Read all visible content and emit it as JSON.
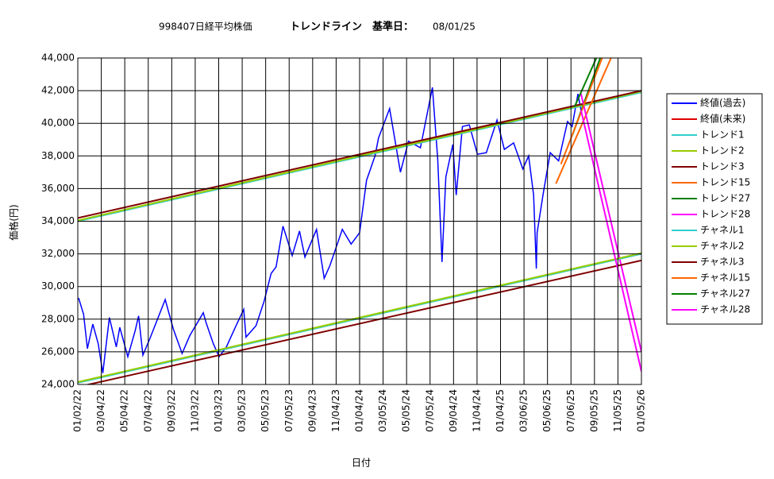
{
  "chart_data": {
    "type": "line",
    "title": [
      "998407日経平均株価",
      "トレンドライン　基準日：",
      "08/01/25"
    ],
    "x_label": "日付",
    "y_label": "価格(円)",
    "xlim": [
      "01/02/22",
      "01/05/26"
    ],
    "xticks": [
      "01/02/22",
      "03/04/22",
      "05/04/22",
      "07/04/22",
      "09/03/22",
      "11/03/22",
      "01/03/23",
      "03/05/23",
      "05/05/23",
      "07/05/23",
      "09/04/23",
      "11/04/23",
      "01/04/24",
      "03/05/24",
      "05/05/24",
      "07/05/24",
      "09/04/24",
      "11/04/24",
      "01/04/25",
      "03/06/25",
      "05/06/25",
      "07/06/25",
      "09/05/25",
      "11/05/25",
      "01/05/26"
    ],
    "ylim": [
      24000,
      44000
    ],
    "yticks": [
      {
        "value": 24000,
        "label": "24,000"
      },
      {
        "value": 26000,
        "label": "26,000"
      },
      {
        "value": 28000,
        "label": "28,000"
      },
      {
        "value": 30000,
        "label": "30,000"
      },
      {
        "value": 32000,
        "label": "32,000"
      },
      {
        "value": 34000,
        "label": "34,000"
      },
      {
        "value": 36000,
        "label": "36,000"
      },
      {
        "value": 38000,
        "label": "38,000"
      },
      {
        "value": 40000,
        "label": "40,000"
      },
      {
        "value": 42000,
        "label": "42,000"
      },
      {
        "value": 44000,
        "label": "44,000"
      }
    ],
    "grid": true,
    "series": [
      {
        "name": "終値(過去)",
        "color": "#0000ff",
        "x": [
          "01/04/22",
          "01/17/22",
          "01/27/22",
          "02/10/22",
          "02/24/22",
          "03/08/22",
          "03/25/22",
          "04/12/22",
          "04/21/22",
          "05/12/22",
          "05/31/22",
          "06/09/22",
          "06/20/22",
          "07/08/22",
          "08/17/22",
          "09/07/22",
          "09/30/22",
          "10/20/22",
          "11/24/22",
          "12/01/22",
          "12/20/22",
          "01/04/23",
          "01/23/23",
          "02/15/23",
          "03/09/23",
          "03/15/23",
          "04/10/23",
          "05/01/23",
          "05/19/23",
          "06/01/23",
          "06/19/23",
          "07/13/23",
          "08/01/23",
          "08/15/23",
          "09/14/23",
          "10/04/23",
          "10/19/23",
          "11/20/23",
          "12/13/23",
          "01/04/24",
          "01/22/24",
          "02/13/24",
          "02/22/24",
          "03/22/24",
          "04/19/24",
          "05/10/24",
          "06/10/24",
          "07/11/24",
          "07/25/24",
          "08/05/24",
          "08/15/24",
          "09/02/24",
          "09/11/24",
          "09/27/24",
          "10/15/24",
          "11/05/24",
          "11/28/24",
          "12/26/24",
          "01/14/25",
          "02/07/25",
          "03/03/25",
          "03/18/25",
          "03/31/25",
          "04/07/25",
          "04/09/25",
          "04/25/25",
          "05/13/25",
          "06/04/25",
          "06/27/25",
          "07/09/25",
          "07/24/25",
          "08/01/25"
        ],
        "values": [
          29300,
          28300,
          26200,
          27700,
          26500,
          24700,
          28100,
          26300,
          27500,
          25700,
          27300,
          28200,
          25800,
          26800,
          29200,
          27400,
          25900,
          27000,
          28400,
          27800,
          26500,
          25700,
          26300,
          27500,
          28600,
          26900,
          27600,
          29100,
          30800,
          31200,
          33700,
          31900,
          33400,
          31800,
          33500,
          30500,
          31300,
          33500,
          32600,
          33300,
          36500,
          38000,
          39100,
          40900,
          37000,
          38900,
          38500,
          42200,
          37800,
          31500,
          36700,
          38700,
          35600,
          39800,
          39900,
          38100,
          38200,
          40200,
          38400,
          38800,
          37200,
          38000,
          35600,
          31100,
          33300,
          35700,
          38200,
          37700,
          40100,
          39800,
          41800,
          40800
        ]
      },
      {
        "name": "終値(未来)",
        "color": "#e00000",
        "x": [],
        "values": []
      },
      {
        "name": "トレンド1",
        "color": "#33cccc",
        "x": [
          "01/02/22",
          "01/05/26"
        ],
        "values": [
          34000,
          41900
        ]
      },
      {
        "name": "トレンド2",
        "color": "#99cc00",
        "x": [
          "01/02/22",
          "01/05/26"
        ],
        "values": [
          34050,
          41950
        ]
      },
      {
        "name": "トレンド3",
        "color": "#800000",
        "x": [
          "01/02/22",
          "01/05/26"
        ],
        "values": [
          34200,
          42000
        ]
      },
      {
        "name": "トレンド15",
        "color": "#ff6600",
        "x": [
          "05/28/25",
          "10/18/25"
        ],
        "values": [
          36300,
          44000
        ]
      },
      {
        "name": "トレンド27",
        "color": "#008000",
        "x": [
          "07/10/25",
          "09/20/25"
        ],
        "values": [
          39300,
          44000
        ]
      },
      {
        "name": "トレンド28",
        "color": "#ff00ff",
        "x": [
          "08/01/25",
          "01/05/26"
        ],
        "values": [
          41800,
          26000
        ]
      },
      {
        "name": "チャネル1",
        "color": "#33cccc",
        "x": [
          "01/02/22",
          "01/05/26"
        ],
        "values": [
          24100,
          32000
        ]
      },
      {
        "name": "チャネル2",
        "color": "#99cc00",
        "x": [
          "01/02/22",
          "01/05/26"
        ],
        "values": [
          24150,
          32050
        ]
      },
      {
        "name": "チャネル3",
        "color": "#800000",
        "x": [
          "01/02/22",
          "01/05/26"
        ],
        "values": [
          23850,
          31600
        ]
      },
      {
        "name": "チャネル15",
        "color": "#ff6600",
        "x": [
          "06/10/25",
          "09/25/25"
        ],
        "values": [
          37500,
          44000
        ]
      },
      {
        "name": "チャネル27",
        "color": "#008000",
        "x": [
          "07/15/25",
          "09/10/25"
        ],
        "values": [
          41000,
          44000
        ]
      },
      {
        "name": "チャネル28",
        "color": "#ff00ff",
        "x": [
          "08/01/25",
          "01/05/26"
        ],
        "values": [
          40800,
          24800
        ]
      }
    ]
  }
}
